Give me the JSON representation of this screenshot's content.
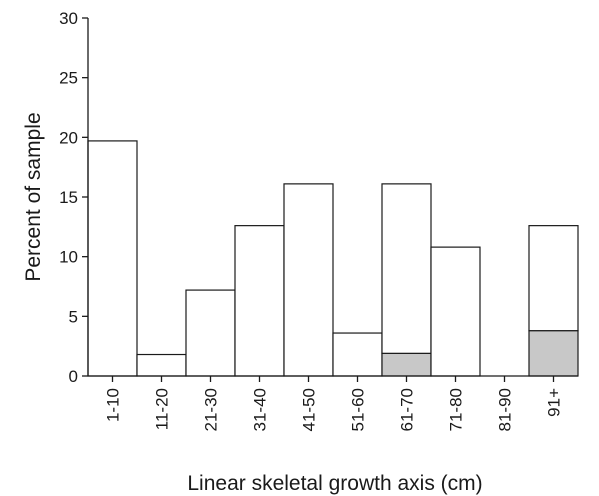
{
  "chart_data": {
    "type": "bar",
    "title": "",
    "xlabel": "Linear skeletal growth axis (cm)",
    "ylabel": "Percent of sample",
    "ylim": [
      0,
      30
    ],
    "yticks": [
      0,
      5,
      10,
      15,
      20,
      25,
      30
    ],
    "grid": false,
    "legend": "none",
    "stacked": true,
    "categories": [
      "1-10",
      "11-20",
      "21-30",
      "31-40",
      "41-50",
      "51-60",
      "61-70",
      "71-80",
      "81-90",
      "91+"
    ],
    "series": [
      {
        "values": [
          0,
          0,
          0,
          0,
          0,
          0,
          1.9,
          0,
          0,
          3.8
        ],
        "color": "#c8c8c8"
      },
      {
        "values": [
          19.7,
          1.8,
          7.2,
          12.6,
          16.1,
          3.6,
          14.2,
          10.8,
          0,
          8.8
        ],
        "color": "#ffffff"
      }
    ],
    "outline_color": "#1a1a1a"
  }
}
